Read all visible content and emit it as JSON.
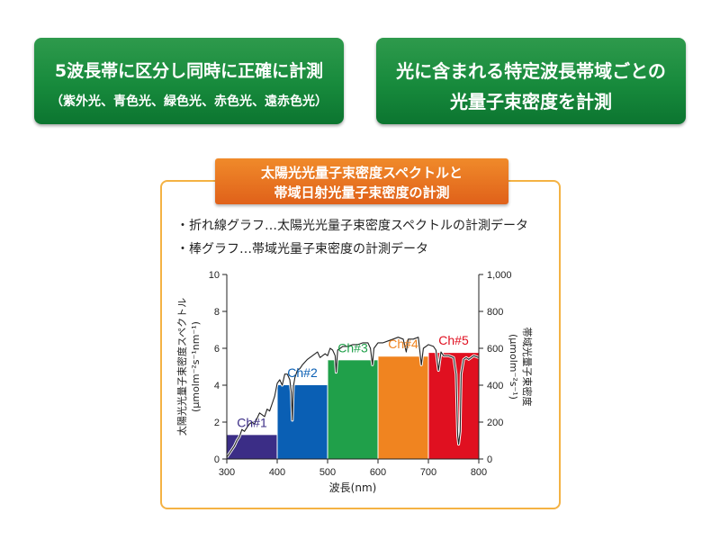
{
  "left_box": {
    "line1": "5波長帯に区分し同時に正確に計測",
    "line2": "（紫外光、青色光、緑色光、赤色光、遠赤色光）"
  },
  "right_box": {
    "line1": "光に含まれる特定波長帯域ごとの",
    "line2": "光量子束密度を計測"
  },
  "panel_title": {
    "line1": "太陽光光量子束密度スペクトルと",
    "line2": "帯域日射光量子束密度の計測"
  },
  "bullets": [
    "・折れ線グラフ…太陽光光量子束密度スペクトルの計測データ",
    "・棒グラフ…帯域光量子束密度の計測データ"
  ],
  "chart_data": {
    "type": "bar",
    "xlabel": "波長(nm)",
    "ylabel_left": "太陽光光量子束密度スペクトル",
    "ylabel_left_unit": "(μmolm⁻²s⁻¹nm⁻¹)",
    "ylabel_right": "帯域光量子束密度",
    "ylabel_right_unit": "(μmolm⁻²s⁻¹)",
    "xlim": [
      300,
      800
    ],
    "ylim_left": [
      0,
      10
    ],
    "ylim_right": [
      0,
      1000
    ],
    "x_ticks": [
      "300",
      "400",
      "500",
      "600",
      "700",
      "800"
    ],
    "y_left_ticks": [
      "0",
      "2",
      "4",
      "6",
      "8",
      "10"
    ],
    "y_right_ticks": [
      "0",
      "200",
      "400",
      "600",
      "800",
      "1,000"
    ],
    "bars": [
      {
        "label": "Ch#1",
        "x0": 300,
        "x1": 400,
        "value": 130,
        "color": "#3b2d86"
      },
      {
        "label": "Ch#2",
        "x0": 400,
        "x1": 500,
        "value": 400,
        "color": "#0a5fb4"
      },
      {
        "label": "Ch#3",
        "x0": 500,
        "x1": 600,
        "value": 535,
        "color": "#20a04a"
      },
      {
        "label": "Ch#4",
        "x0": 600,
        "x1": 700,
        "value": 555,
        "color": "#f08420"
      },
      {
        "label": "Ch#5",
        "x0": 700,
        "x1": 800,
        "value": 575,
        "color": "#e01020"
      }
    ],
    "spectrum": {
      "x": [
        300,
        305,
        310,
        315,
        320,
        325,
        330,
        335,
        340,
        345,
        350,
        355,
        360,
        365,
        370,
        375,
        380,
        385,
        390,
        395,
        400,
        405,
        410,
        415,
        420,
        425,
        428,
        430,
        432,
        435,
        440,
        445,
        450,
        460,
        470,
        480,
        485,
        490,
        495,
        500,
        505,
        510,
        515,
        517,
        520,
        525,
        530,
        540,
        550,
        560,
        570,
        580,
        585,
        589,
        592,
        600,
        610,
        620,
        630,
        640,
        650,
        656,
        660,
        670,
        680,
        686,
        690,
        700,
        710,
        715,
        720,
        725,
        730,
        740,
        750,
        755,
        758,
        760,
        763,
        765,
        770,
        775,
        780,
        790,
        800
      ],
      "y": [
        0.1,
        0.3,
        0.5,
        0.7,
        1.0,
        1.2,
        1.6,
        1.5,
        1.7,
        1.9,
        2.0,
        1.9,
        2.2,
        2.5,
        2.4,
        2.3,
        2.7,
        2.6,
        3.0,
        3.4,
        4.1,
        4.3,
        4.0,
        4.6,
        4.6,
        4.3,
        3.6,
        2.1,
        3.9,
        4.4,
        4.8,
        4.9,
        5.1,
        5.4,
        5.6,
        5.8,
        5.5,
        5.6,
        5.7,
        5.6,
        6.0,
        5.9,
        5.6,
        4.7,
        5.9,
        6.0,
        6.1,
        6.1,
        6.2,
        6.2,
        6.3,
        6.3,
        6.0,
        5.1,
        6.0,
        6.3,
        6.3,
        6.4,
        6.5,
        6.6,
        6.5,
        5.8,
        6.5,
        6.5,
        6.6,
        5.1,
        6.0,
        6.2,
        6.1,
        5.9,
        4.8,
        5.8,
        5.6,
        5.6,
        5.5,
        4.6,
        1.3,
        0.8,
        1.5,
        4.6,
        5.4,
        5.5,
        5.4,
        5.6,
        5.5
      ]
    }
  }
}
